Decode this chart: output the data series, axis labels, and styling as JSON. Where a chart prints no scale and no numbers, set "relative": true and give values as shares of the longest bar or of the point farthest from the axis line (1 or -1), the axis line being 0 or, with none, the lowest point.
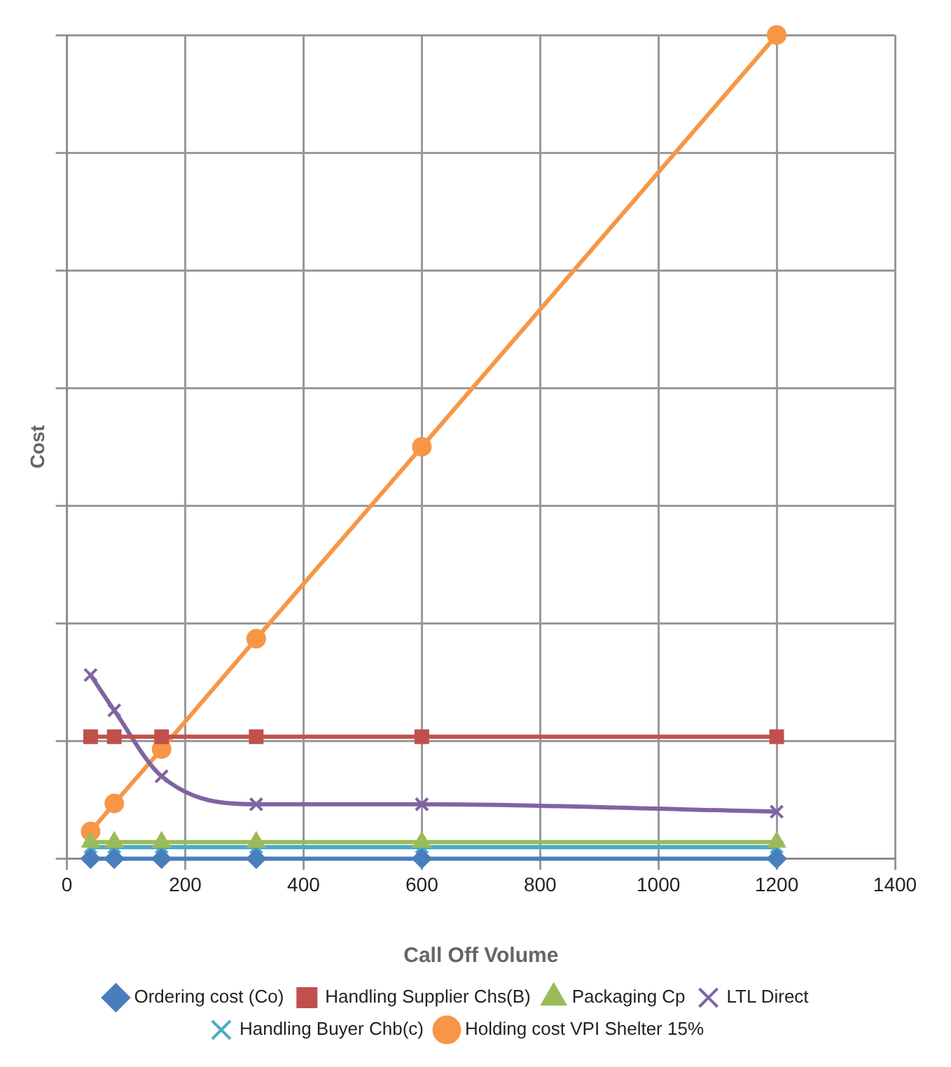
{
  "chart_data": {
    "type": "line",
    "xlabel": "Call Off Volume",
    "ylabel": "Cost",
    "relative": true,
    "xlim": [
      0,
      1400
    ],
    "xticks": [
      0,
      200,
      400,
      600,
      800,
      1000,
      1200,
      1400
    ],
    "grid": true,
    "legend": "bottom",
    "x": [
      40,
      80,
      160,
      320,
      600,
      1200
    ],
    "series": [
      {
        "name": "Ordering cost (Co)",
        "color": "#4a7ebb",
        "marker": "diamond",
        "values": [
          0,
          0,
          0,
          0,
          0,
          0
        ]
      },
      {
        "name": "Handling Supplier Chs(B)",
        "color": "#c0504d",
        "marker": "square",
        "values": [
          0.148,
          0.148,
          0.148,
          0.148,
          0.148,
          0.148
        ]
      },
      {
        "name": "Packaging Cp",
        "color": "#9bbb59",
        "marker": "triangle",
        "values": [
          0.02,
          0.02,
          0.02,
          0.02,
          0.02,
          0.02
        ]
      },
      {
        "name": "LTL Direct",
        "color": "#8064a2",
        "marker": "cross",
        "values": [
          0.223,
          0.18,
          0.1,
          0.066,
          0.066,
          0.057
        ]
      },
      {
        "name": "Handling Buyer Chb(c)",
        "color": "#4bacc6",
        "marker": "cross",
        "values": [
          0.014,
          0.014,
          0.014,
          0.014,
          0.014,
          0.014
        ]
      },
      {
        "name": "Holding cost VPI Shelter 15%",
        "color": "#f79646",
        "marker": "circle",
        "values": [
          0.033,
          0.067,
          0.133,
          0.267,
          0.5,
          1
        ]
      }
    ]
  }
}
